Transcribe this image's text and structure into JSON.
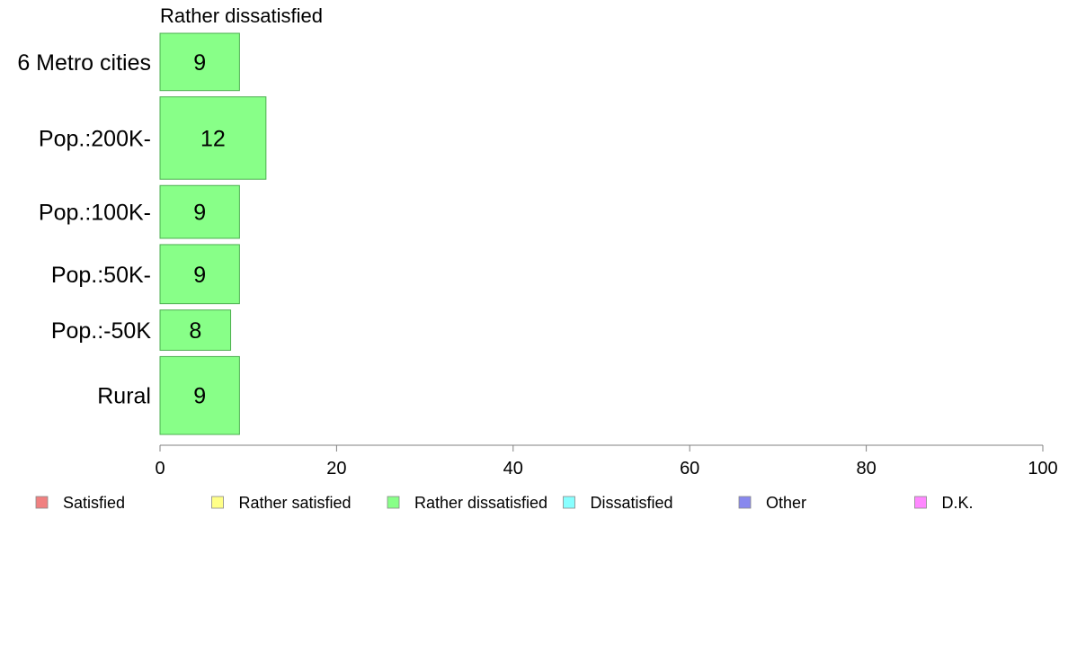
{
  "chart_data": {
    "type": "bar",
    "orientation": "horizontal",
    "title": "Rather dissatisfied",
    "categories": [
      "6 Metro cities",
      "Pop.:200K-",
      "Pop.:100K-",
      "Pop.:50K-",
      "Pop.:-50K",
      "Rural"
    ],
    "values": [
      9,
      12,
      9,
      9,
      8,
      9
    ],
    "value_labels": [
      "9",
      "12",
      "9",
      "9",
      "8",
      "9"
    ],
    "bar_thickness_weights": [
      0.64,
      0.92,
      0.59,
      0.66,
      0.45,
      0.87
    ],
    "xlim": [
      0,
      100
    ],
    "xticks": [
      0,
      20,
      40,
      60,
      80,
      100
    ],
    "xtick_labels": [
      "0",
      "20",
      "40",
      "60",
      "80",
      "100"
    ],
    "xlabel": "",
    "ylabel": "",
    "grid": false,
    "bar_color": "#88ff88",
    "bar_edge_color": "#4caf50",
    "legend_position": "bottom",
    "legend": [
      {
        "label": "Satisfied",
        "color": "#f08080"
      },
      {
        "label": "Rather satisfied",
        "color": "#ffff88"
      },
      {
        "label": "Rather dissatisfied",
        "color": "#88ff88"
      },
      {
        "label": "Dissatisfied",
        "color": "#88ffff"
      },
      {
        "label": "Other",
        "color": "#8888ee"
      },
      {
        "label": "D.K.",
        "color": "#ff88ff"
      }
    ]
  }
}
